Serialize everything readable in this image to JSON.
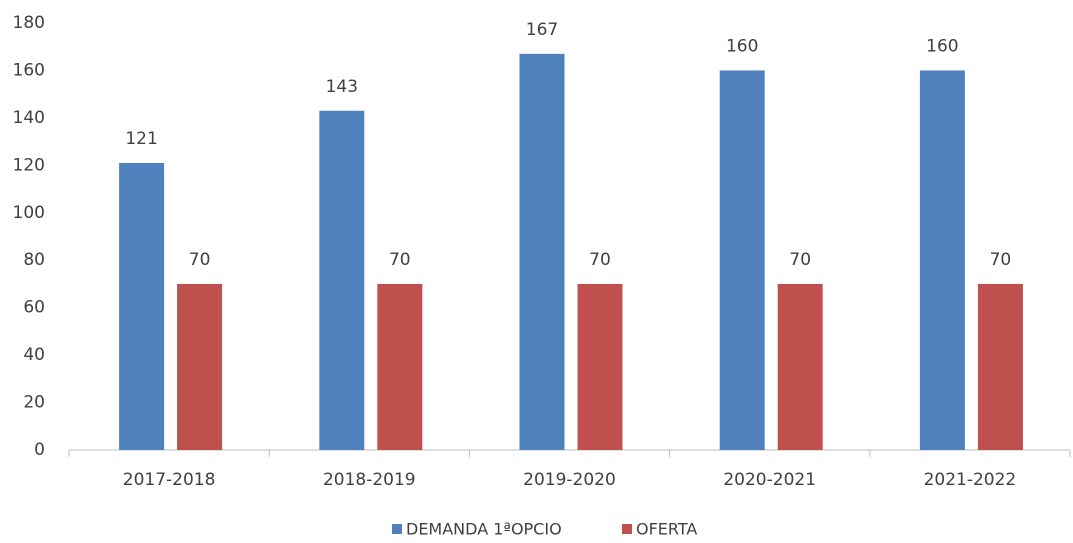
{
  "chart_data": {
    "type": "bar",
    "categories": [
      "2017-2018",
      "2018-2019",
      "2019-2020",
      "2020-2021",
      "2021-2022"
    ],
    "series": [
      {
        "name": "DEMANDA 1ªOPCIO",
        "color": "#4f81bd",
        "values": [
          121,
          143,
          167,
          160,
          160
        ]
      },
      {
        "name": "OFERTA",
        "color": "#c0504d",
        "values": [
          70,
          70,
          70,
          70,
          70
        ]
      }
    ],
    "ylim": [
      0,
      180
    ],
    "yticks": [
      0,
      20,
      40,
      60,
      80,
      100,
      120,
      140,
      160,
      180
    ],
    "grid": false,
    "legend": "bottom"
  }
}
